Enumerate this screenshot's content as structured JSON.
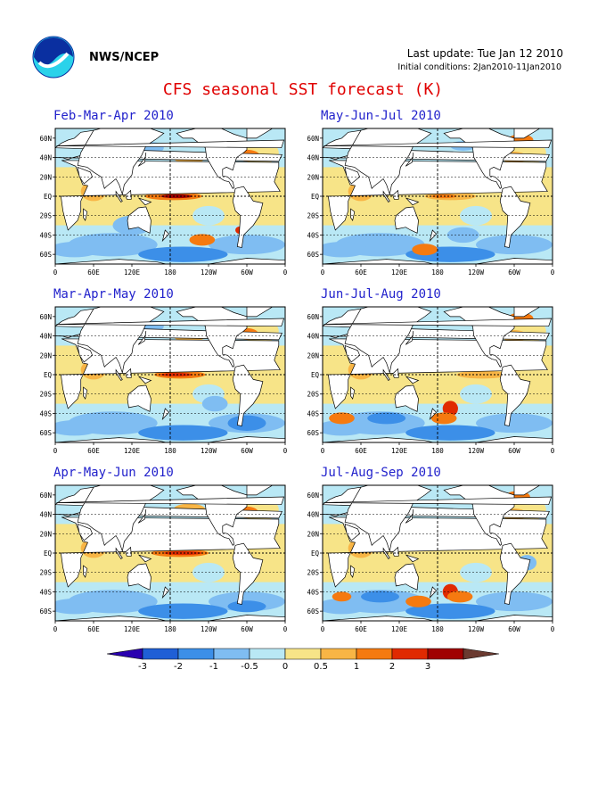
{
  "header": {
    "agency": "NWS/NCEP",
    "last_update": "Last update: Tue Jan 12 2010",
    "initial_conditions": "Initial conditions: 2Jan2010-11Jan2010"
  },
  "title": "CFS seasonal SST forecast (K)",
  "lat_labels": [
    "60N",
    "40N",
    "20N",
    "EQ",
    "20S",
    "40S",
    "60S"
  ],
  "lon_labels": [
    "0",
    "60E",
    "120E",
    "180",
    "120W",
    "60W",
    "0"
  ],
  "panels": [
    {
      "label": "Feb-Mar-Apr 2010"
    },
    {
      "label": "May-Jun-Jul 2010"
    },
    {
      "label": "Mar-Apr-May 2010"
    },
    {
      "label": "Jun-Jul-Aug 2010"
    },
    {
      "label": "Apr-May-Jun 2010"
    },
    {
      "label": "Jul-Aug-Sep 2010"
    }
  ],
  "colorbar": {
    "ticks": [
      "-3",
      "-2",
      "-1",
      "-0.5",
      "0",
      "0.5",
      "1",
      "2",
      "3"
    ],
    "colors": [
      "#2a00b0",
      "#1f5fd6",
      "#3c8fe8",
      "#7fbdf2",
      "#b9e8f5",
      "#f7e488",
      "#f8b545",
      "#f57a10",
      "#e02a00",
      "#a00000",
      "#6b3a30"
    ]
  }
}
